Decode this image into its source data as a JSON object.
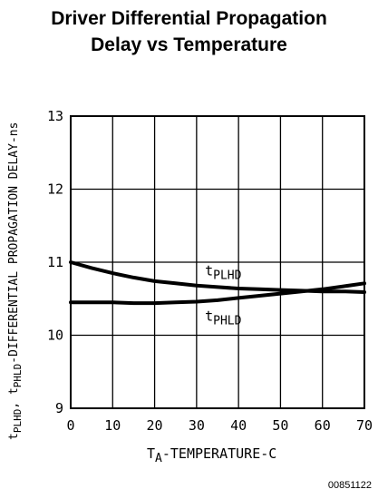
{
  "chart_data": {
    "type": "line",
    "title_lines": [
      "Driver Differential Propagation",
      "Delay vs Temperature"
    ],
    "xlabel": {
      "main": "T",
      "sub": "A",
      "rest": "-TEMPERATURE-C"
    },
    "ylabel": {
      "t1": "t",
      "s1": "PLHD",
      "mid": ", t",
      "s2": "PHLD",
      "rest": "-DIFFERENTIAL PROPAGATION DELAY-ns"
    },
    "xlim": [
      0,
      70
    ],
    "ylim": [
      9,
      13
    ],
    "xticks": [
      0,
      10,
      20,
      30,
      40,
      50,
      60,
      70
    ],
    "yticks": [
      9,
      10,
      11,
      12,
      13
    ],
    "grid": true,
    "series": [
      {
        "name": "t_PLHD",
        "label_main": "t",
        "label_sub": "PLHD",
        "x": [
          0,
          5,
          10,
          15,
          20,
          25,
          30,
          35,
          40,
          45,
          50,
          55,
          60,
          65,
          70
        ],
        "y": [
          11.0,
          10.92,
          10.85,
          10.79,
          10.74,
          10.71,
          10.68,
          10.66,
          10.64,
          10.63,
          10.62,
          10.61,
          10.6,
          10.6,
          10.59
        ]
      },
      {
        "name": "t_PHLD",
        "label_main": "t",
        "label_sub": "PHLD",
        "x": [
          0,
          5,
          10,
          15,
          20,
          25,
          30,
          35,
          40,
          45,
          50,
          55,
          60,
          65,
          70
        ],
        "y": [
          10.45,
          10.45,
          10.45,
          10.44,
          10.44,
          10.45,
          10.46,
          10.48,
          10.51,
          10.54,
          10.57,
          10.6,
          10.63,
          10.67,
          10.71
        ]
      }
    ],
    "code": "00851122"
  }
}
